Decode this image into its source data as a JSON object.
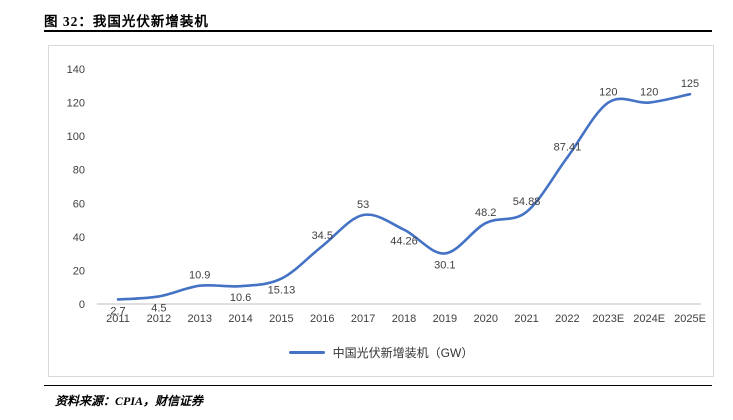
{
  "header": {
    "title": "图 32：我国光伏新增装机"
  },
  "chart_data": {
    "type": "line",
    "categories": [
      "2011",
      "2012",
      "2013",
      "2014",
      "2015",
      "2016",
      "2017",
      "2018",
      "2019",
      "2020",
      "2021",
      "2022",
      "2023E",
      "2024E",
      "2025E"
    ],
    "series": [
      {
        "name": "中国光伏新增装机（GW）",
        "values": [
          2.7,
          4.5,
          10.9,
          10.6,
          15.13,
          34.5,
          53,
          44.26,
          30.1,
          48.2,
          54.88,
          87.41,
          120,
          120,
          125
        ],
        "color": "#4472C4"
      }
    ],
    "title": "",
    "xlabel": "",
    "ylabel": "",
    "ylim": [
      0,
      140
    ],
    "ytick_step": 20,
    "grid": false,
    "smooth": true,
    "legend_position": "bottom",
    "label_position": [
      "below",
      "below",
      "above",
      "below",
      "below",
      "above",
      "above",
      "below",
      "below",
      "above",
      "above",
      "above",
      "above",
      "above",
      "above"
    ]
  },
  "legend": {
    "label": "中国光伏新增装机（GW）"
  },
  "footer": {
    "source": "资料来源：CPIA，财信证券"
  }
}
